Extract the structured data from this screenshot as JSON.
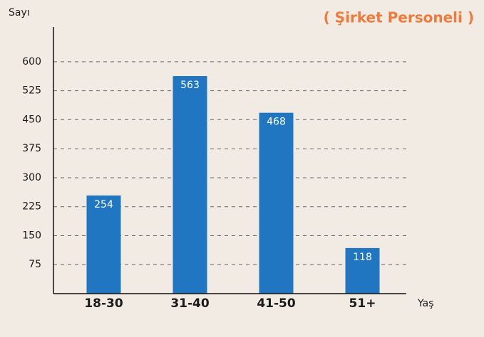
{
  "chart_data": {
    "type": "bar",
    "title": "( Şirket Personeli )",
    "y_label": "Sayı",
    "x_label": "Yaş",
    "categories": [
      "18-30",
      "31-40",
      "41-50",
      "51+"
    ],
    "values": [
      254,
      563,
      468,
      118
    ],
    "color": "#2176c2",
    "ylim": [
      0,
      690
    ],
    "yticks": [
      75,
      150,
      225,
      300,
      375,
      450,
      525,
      600
    ],
    "grid": true
  }
}
